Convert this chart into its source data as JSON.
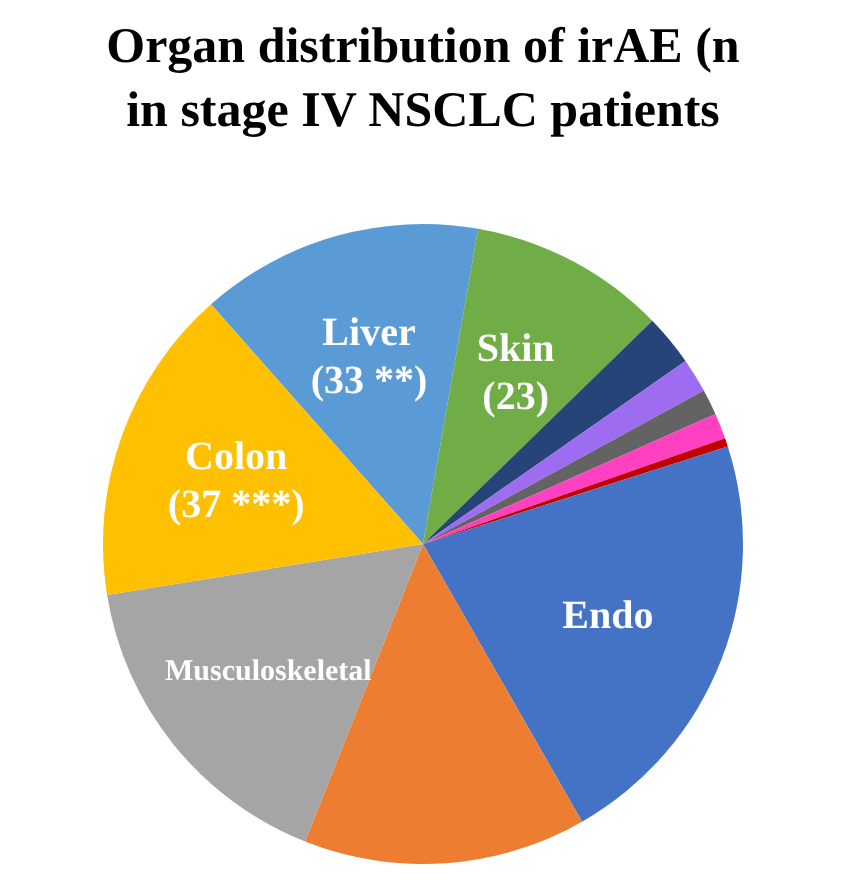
{
  "chart_data": {
    "type": "pie",
    "title": "Organ distribution of irAE (n\nin stage IV NSCLC patients",
    "categories": [
      "Liver",
      "Skin",
      null,
      null,
      null,
      null,
      null,
      "Endo",
      null,
      "Musculoskeletal",
      "Colon"
    ],
    "values": [
      33,
      23,
      6,
      4,
      3,
      3,
      1,
      50,
      33,
      38,
      37
    ],
    "value_labels": [
      "(33 **)",
      "(23)",
      null,
      null,
      null,
      null,
      null,
      null,
      null,
      null,
      "(37 ***)"
    ],
    "colors": [
      "#5b9bd5",
      "#70ad47",
      "#264478",
      "#9e6cf0",
      "#636363",
      "#ff40c0",
      "#c00000",
      "#4472c4",
      "#ed7d31",
      "#a5a5a5",
      "#ffc000"
    ],
    "legend": false
  }
}
